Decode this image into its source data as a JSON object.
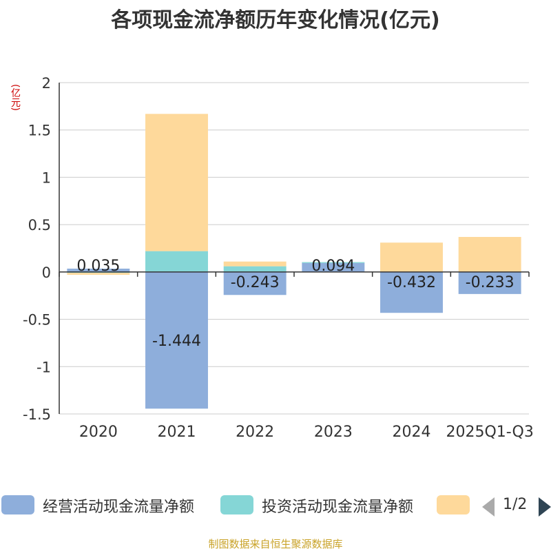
{
  "title": "各项现金流净额历年变化情况(亿元)",
  "unit": "(亿元)",
  "source": "制图数据来自恒生聚源数据库",
  "legend": {
    "items": [
      "经营活动现金流量净额",
      "投资活动现金流量净额",
      ""
    ],
    "page": "1/2"
  },
  "colors": {
    "operating": "#8eaedb",
    "investing": "#85d6d6",
    "financing": "#fed99b",
    "grid": "#cccccc",
    "axis": "#333333"
  },
  "chart_data": {
    "type": "bar",
    "stacked": true,
    "title": "各项现金流净额历年变化情况(亿元)",
    "ylabel": "(亿元)",
    "categories": [
      "2020",
      "2021",
      "2022",
      "2023",
      "2024",
      "2025Q1-Q3"
    ],
    "ylim": [
      -1.5,
      2
    ],
    "yticks": [
      2,
      1.5,
      1,
      0.5,
      0,
      -0.5,
      -1,
      -1.5
    ],
    "ytick_labels": [
      "2",
      "1.5",
      "1",
      "0.5",
      "0",
      "-0.5",
      "-1",
      "-1.5"
    ],
    "series": [
      {
        "name": "经营活动现金流量净额",
        "key": "operating",
        "values": [
          0.035,
          -1.444,
          -0.243,
          0.094,
          -0.432,
          -0.233
        ]
      },
      {
        "name": "投资活动现金流量净额",
        "key": "investing",
        "values": [
          -0.01,
          0.22,
          0.06,
          0.01,
          0.0,
          0.0
        ]
      },
      {
        "name": "",
        "key": "financing",
        "values": [
          -0.02,
          1.45,
          0.05,
          0.0,
          0.31,
          0.37
        ]
      }
    ],
    "data_labels": [
      "0.035",
      "-1.444",
      "-0.243",
      "0.094",
      "-0.432",
      "-0.233"
    ]
  }
}
